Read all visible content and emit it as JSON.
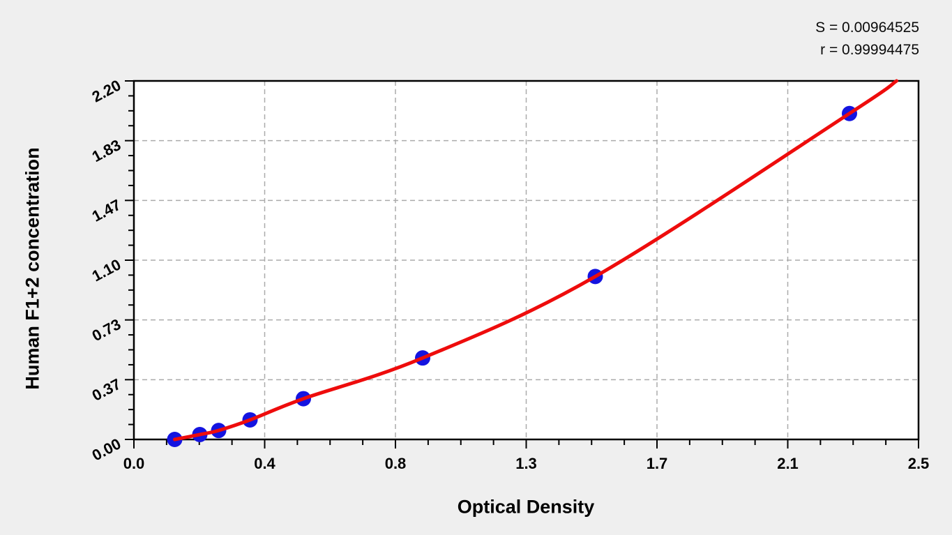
{
  "chart_data": {
    "type": "scatter",
    "title": "",
    "xlabel": "Optical Density",
    "ylabel": "Human F1+2 concentration",
    "xlim": [
      0,
      2.5
    ],
    "ylim": [
      0,
      2.2
    ],
    "x_tick_labels": [
      "0.0",
      "0.4",
      "0.8",
      "1.3",
      "1.7",
      "2.1",
      "2.5"
    ],
    "y_tick_labels": [
      "0.00",
      "0.37",
      "0.73",
      "1.10",
      "1.47",
      "1.83",
      "2.20"
    ],
    "minor_ticks_between_majors": 3,
    "grid": "dashed gray lines at major ticks, both axes",
    "legend": "none",
    "stats": {
      "s": "S = 0.00964525",
      "r": "r = 0.99994475"
    },
    "series": [
      {
        "name": "standard-points",
        "type": "scatter",
        "color": "#1414e0",
        "points": [
          {
            "od": 0.13,
            "conc": 0.0
          },
          {
            "od": 0.21,
            "conc": 0.03
          },
          {
            "od": 0.27,
            "conc": 0.055
          },
          {
            "od": 0.37,
            "conc": 0.12
          },
          {
            "od": 0.54,
            "conc": 0.25
          },
          {
            "od": 0.92,
            "conc": 0.5
          },
          {
            "od": 1.47,
            "conc": 1.0
          },
          {
            "od": 2.28,
            "conc": 2.0
          }
        ]
      },
      {
        "name": "fitted-curve",
        "type": "line",
        "color": "#ee0c0c",
        "end_point": {
          "od": 2.43,
          "conc": 2.2
        }
      }
    ],
    "colors": {
      "points": "#1414e0",
      "curve": "#ee0c0c",
      "grid": "#ababab",
      "axis": "#000000",
      "plot_background": "#ffffff",
      "page_background": "#efefef"
    }
  }
}
